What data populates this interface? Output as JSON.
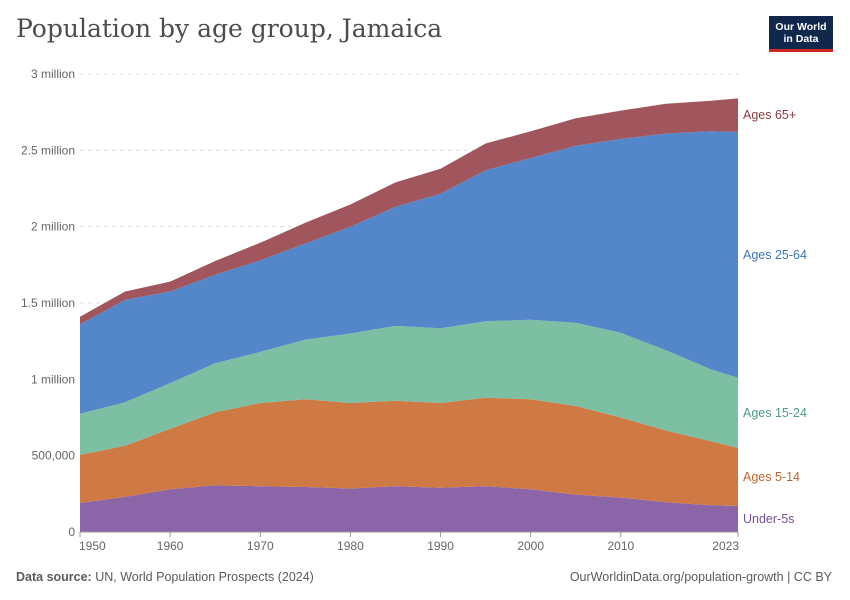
{
  "header": {
    "title": "Population by age group, Jamaica",
    "logo_line1": "Our World",
    "logo_line2": "in Data"
  },
  "footer": {
    "source_label": "Data source:",
    "source_text": "UN, World Population Prospects (2024)",
    "url": "OurWorldinData.org/population-growth | CC BY"
  },
  "chart_data": {
    "type": "area",
    "stacked": true,
    "title": "Population by age group, Jamaica",
    "xlabel": "",
    "ylabel": "",
    "xlim": [
      1950,
      2023
    ],
    "ylim": [
      0,
      3000000
    ],
    "y_ticks": [
      {
        "value": 0,
        "label": "0"
      },
      {
        "value": 500000,
        "label": "500,000"
      },
      {
        "value": 1000000,
        "label": "1 million"
      },
      {
        "value": 1500000,
        "label": "1.5 million"
      },
      {
        "value": 2000000,
        "label": "2 million"
      },
      {
        "value": 2500000,
        "label": "2.5 million"
      },
      {
        "value": 3000000,
        "label": "3 million"
      }
    ],
    "x_ticks": [
      1950,
      1960,
      1970,
      1980,
      1990,
      2000,
      2010,
      2023
    ],
    "grid": true,
    "x": [
      1950,
      1955,
      1960,
      1965,
      1970,
      1975,
      1980,
      1985,
      1990,
      1995,
      2000,
      2005,
      2010,
      2015,
      2020,
      2023
    ],
    "series": [
      {
        "name": "Under-5s",
        "color": "#8c64a8",
        "values": [
          190000,
          230000,
          280000,
          305000,
          300000,
          295000,
          285000,
          300000,
          290000,
          300000,
          280000,
          245000,
          225000,
          195000,
          175000,
          170000
        ]
      },
      {
        "name": "Ages 5-14",
        "color": "#cf7a44",
        "values": [
          315000,
          335000,
          395000,
          480000,
          545000,
          575000,
          560000,
          560000,
          555000,
          580000,
          590000,
          580000,
          525000,
          470000,
          420000,
          380000
        ]
      },
      {
        "name": "Ages 15-24",
        "color": "#7cbfa2",
        "values": [
          270000,
          285000,
          300000,
          320000,
          335000,
          390000,
          455000,
          490000,
          490000,
          500000,
          520000,
          545000,
          555000,
          525000,
          470000,
          460000
        ]
      },
      {
        "name": "Ages 25-64",
        "color": "#5387c9",
        "values": [
          585000,
          670000,
          600000,
          580000,
          600000,
          630000,
          700000,
          780000,
          880000,
          990000,
          1060000,
          1160000,
          1270000,
          1420000,
          1560000,
          1610000
        ]
      },
      {
        "name": "Ages 65+",
        "color": "#a1565d",
        "values": [
          50000,
          55000,
          65000,
          90000,
          115000,
          135000,
          145000,
          160000,
          165000,
          175000,
          175000,
          180000,
          185000,
          195000,
          200000,
          220000
        ]
      }
    ],
    "series_labels": [
      {
        "name": "Ages 65+",
        "color": "#8a3a44"
      },
      {
        "name": "Ages 25-64",
        "color": "#3f73b8"
      },
      {
        "name": "Ages 15-24",
        "color": "#4e9c7c"
      },
      {
        "name": "Ages 5-14",
        "color": "#c0632b"
      },
      {
        "name": "Under-5s",
        "color": "#76509a"
      }
    ]
  }
}
